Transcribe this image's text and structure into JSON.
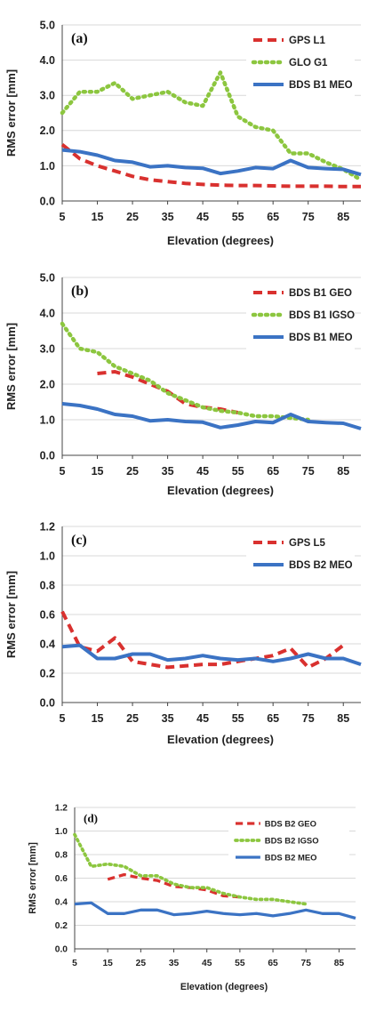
{
  "chart_data": [
    {
      "type": "line",
      "panel_label": "(a)",
      "xlabel": "Elevation (degrees)",
      "ylabel": "RMS error [mm]",
      "xlim": [
        5,
        90
      ],
      "ylim": [
        0,
        5
      ],
      "xticks": [
        "5",
        "15",
        "25",
        "35",
        "45",
        "55",
        "65",
        "75",
        "85"
      ],
      "yticks": [
        "0.0",
        "1.0",
        "2.0",
        "3.0",
        "4.0",
        "5.0"
      ],
      "grid": true,
      "legend_position": "top-right",
      "series": [
        {
          "name": "GPS L1",
          "color": "#d9312f",
          "dash": "dashed",
          "x": [
            5,
            10,
            15,
            20,
            25,
            30,
            35,
            40,
            45,
            50,
            55,
            60,
            65,
            70,
            75,
            80,
            85,
            90
          ],
          "y": [
            1.6,
            1.2,
            1.0,
            0.85,
            0.7,
            0.6,
            0.55,
            0.5,
            0.47,
            0.45,
            0.44,
            0.44,
            0.43,
            0.42,
            0.42,
            0.42,
            0.41,
            0.41
          ]
        },
        {
          "name": "GLO G1",
          "color": "#8cc63f",
          "dash": "dotted",
          "x": [
            5,
            10,
            15,
            20,
            25,
            30,
            35,
            40,
            45,
            50,
            55,
            60,
            65,
            70,
            75,
            80,
            85,
            90
          ],
          "y": [
            2.5,
            3.1,
            3.1,
            3.35,
            2.9,
            3.0,
            3.1,
            2.8,
            2.7,
            3.65,
            2.4,
            2.1,
            2.0,
            1.35,
            1.35,
            1.1,
            0.9,
            0.6
          ]
        },
        {
          "name": "BDS B1 MEO",
          "color": "#3b73c4",
          "dash": "solid",
          "x": [
            5,
            10,
            15,
            20,
            25,
            30,
            35,
            40,
            45,
            50,
            55,
            60,
            65,
            70,
            75,
            80,
            85,
            90
          ],
          "y": [
            1.45,
            1.4,
            1.3,
            1.15,
            1.1,
            0.97,
            1.0,
            0.95,
            0.93,
            0.78,
            0.85,
            0.95,
            0.92,
            1.15,
            0.95,
            0.92,
            0.9,
            0.75
          ]
        }
      ]
    },
    {
      "type": "line",
      "panel_label": "(b)",
      "xlabel": "Elevation (degrees)",
      "ylabel": "RMS error [mm]",
      "xlim": [
        5,
        90
      ],
      "ylim": [
        0,
        5
      ],
      "xticks": [
        "5",
        "15",
        "25",
        "35",
        "45",
        "55",
        "65",
        "75",
        "85"
      ],
      "yticks": [
        "0.0",
        "1.0",
        "2.0",
        "3.0",
        "4.0",
        "5.0"
      ],
      "grid": true,
      "legend_position": "top-right",
      "series": [
        {
          "name": "BDS B1 GEO",
          "color": "#d9312f",
          "dash": "dashed",
          "x": [
            15,
            20,
            25,
            30,
            35,
            40,
            45,
            50,
            55
          ],
          "y": [
            2.3,
            2.35,
            2.2,
            2.0,
            1.8,
            1.45,
            1.35,
            1.3,
            1.2
          ]
        },
        {
          "name": "BDS B1 IGSO",
          "color": "#8cc63f",
          "dash": "dotted",
          "x": [
            5,
            10,
            15,
            20,
            25,
            30,
            35,
            40,
            45,
            50,
            55,
            60,
            65,
            70,
            75
          ],
          "y": [
            3.7,
            3.0,
            2.9,
            2.5,
            2.3,
            2.1,
            1.75,
            1.55,
            1.35,
            1.25,
            1.2,
            1.1,
            1.1,
            1.05,
            1.0
          ]
        },
        {
          "name": "BDS B1 MEO",
          "color": "#3b73c4",
          "dash": "solid",
          "x": [
            5,
            10,
            15,
            20,
            25,
            30,
            35,
            40,
            45,
            50,
            55,
            60,
            65,
            70,
            75,
            80,
            85,
            90
          ],
          "y": [
            1.45,
            1.4,
            1.3,
            1.15,
            1.1,
            0.97,
            1.0,
            0.95,
            0.93,
            0.78,
            0.85,
            0.95,
            0.92,
            1.15,
            0.95,
            0.92,
            0.9,
            0.75
          ]
        }
      ]
    },
    {
      "type": "line",
      "panel_label": "(c)",
      "xlabel": "Elevation (degrees)",
      "ylabel": "RMS error [mm]",
      "xlim": [
        5,
        90
      ],
      "ylim": [
        0,
        1.2
      ],
      "xticks": [
        "5",
        "15",
        "25",
        "35",
        "45",
        "55",
        "65",
        "75",
        "85"
      ],
      "yticks": [
        "0.0",
        "0.2",
        "0.4",
        "0.6",
        "0.8",
        "1.0",
        "1.2"
      ],
      "grid": true,
      "legend_position": "top-right",
      "series": [
        {
          "name": "GPS L5",
          "color": "#d9312f",
          "dash": "dashed",
          "x": [
            5,
            10,
            15,
            20,
            25,
            30,
            35,
            40,
            45,
            50,
            55,
            60,
            65,
            70,
            75,
            80,
            85
          ],
          "y": [
            0.62,
            0.38,
            0.35,
            0.44,
            0.28,
            0.26,
            0.24,
            0.25,
            0.26,
            0.26,
            0.28,
            0.3,
            0.32,
            0.37,
            0.24,
            0.3,
            0.39
          ]
        },
        {
          "name": "BDS B2 MEO",
          "color": "#3b73c4",
          "dash": "solid",
          "x": [
            5,
            10,
            15,
            20,
            25,
            30,
            35,
            40,
            45,
            50,
            55,
            60,
            65,
            70,
            75,
            80,
            85,
            90
          ],
          "y": [
            0.38,
            0.39,
            0.3,
            0.3,
            0.33,
            0.33,
            0.29,
            0.3,
            0.32,
            0.3,
            0.29,
            0.3,
            0.28,
            0.3,
            0.33,
            0.3,
            0.3,
            0.26
          ]
        }
      ]
    },
    {
      "type": "line",
      "panel_label": "(d)",
      "xlabel": "Elevation (degrees)",
      "ylabel": "RMS error [mm]",
      "xlim": [
        5,
        90
      ],
      "ylim": [
        0,
        1.2
      ],
      "xticks": [
        "5",
        "15",
        "25",
        "35",
        "45",
        "55",
        "65",
        "75",
        "85"
      ],
      "yticks": [
        "0.0",
        "0.2",
        "0.4",
        "0.6",
        "0.8",
        "1.0",
        "1.2"
      ],
      "grid": true,
      "legend_position": "top-right",
      "series": [
        {
          "name": "BDS B2 GEO",
          "color": "#d9312f",
          "dash": "dashed",
          "x": [
            15,
            20,
            25,
            30,
            35,
            40,
            45,
            50,
            55
          ],
          "y": [
            0.59,
            0.63,
            0.6,
            0.58,
            0.53,
            0.52,
            0.5,
            0.45,
            0.44
          ]
        },
        {
          "name": "BDS B2 IGSO",
          "color": "#8cc63f",
          "dash": "dotted",
          "x": [
            5,
            10,
            15,
            20,
            25,
            30,
            35,
            40,
            45,
            50,
            55,
            60,
            65,
            70,
            75
          ],
          "y": [
            0.97,
            0.7,
            0.72,
            0.7,
            0.62,
            0.62,
            0.55,
            0.52,
            0.52,
            0.47,
            0.44,
            0.42,
            0.42,
            0.4,
            0.38
          ]
        },
        {
          "name": "BDS B2 MEO",
          "color": "#3b73c4",
          "dash": "solid",
          "x": [
            5,
            10,
            15,
            20,
            25,
            30,
            35,
            40,
            45,
            50,
            55,
            60,
            65,
            70,
            75,
            80,
            85,
            90
          ],
          "y": [
            0.38,
            0.39,
            0.3,
            0.3,
            0.33,
            0.33,
            0.29,
            0.3,
            0.32,
            0.3,
            0.29,
            0.3,
            0.28,
            0.3,
            0.33,
            0.3,
            0.3,
            0.26
          ]
        }
      ]
    }
  ]
}
